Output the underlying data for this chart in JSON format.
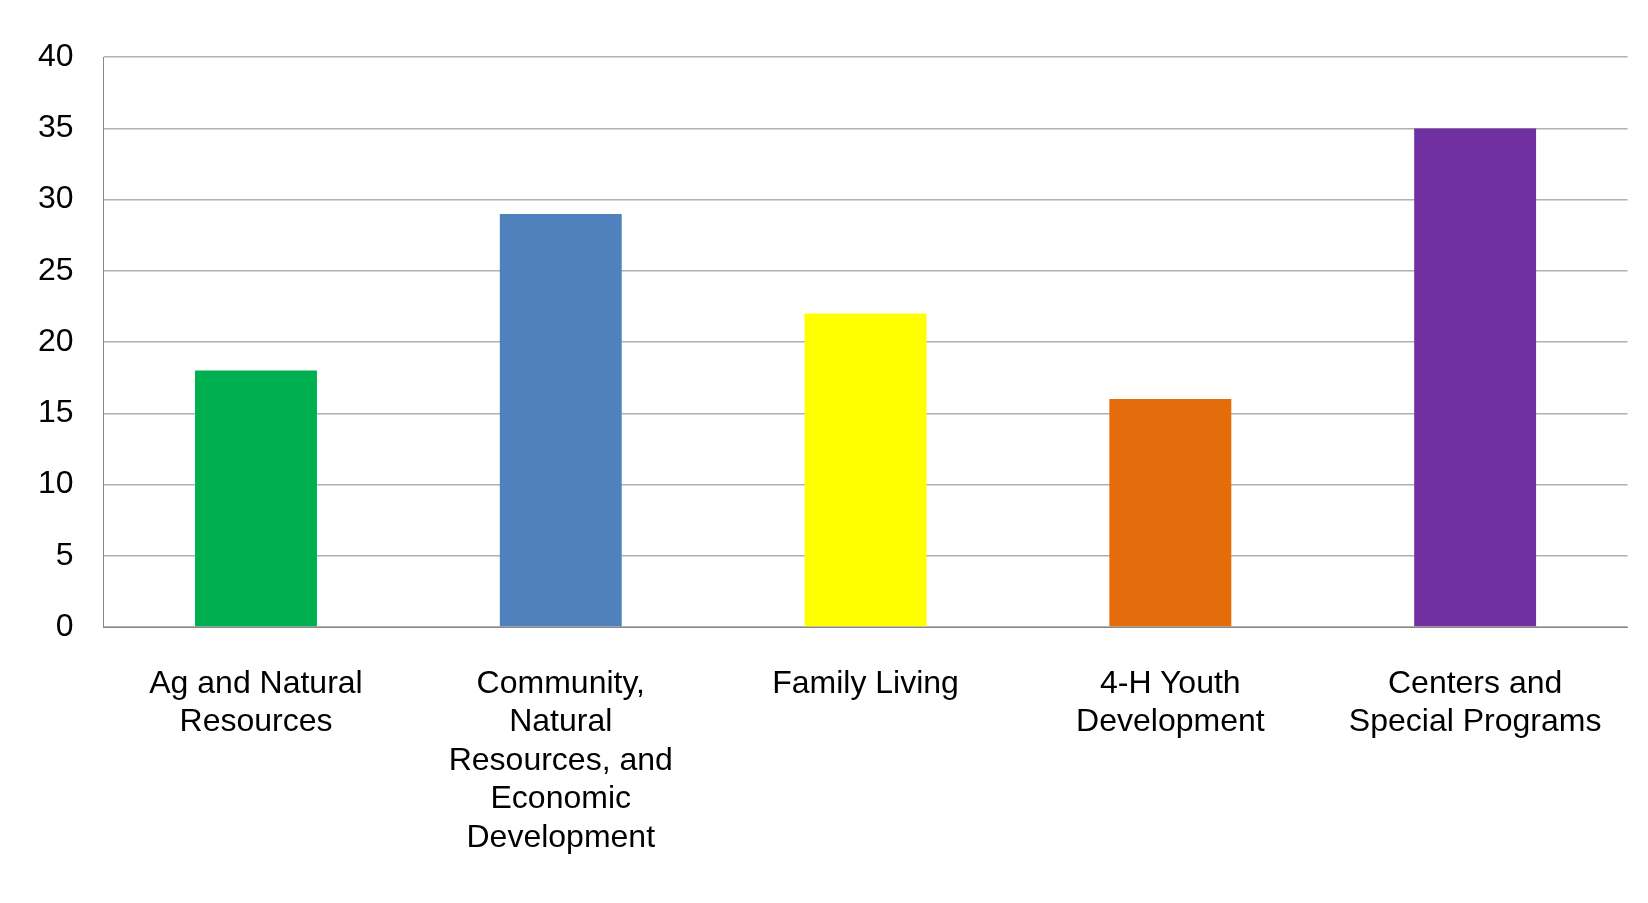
{
  "chart_data": {
    "type": "bar",
    "categories": [
      "Ag and Natural Resources",
      "Community, Natural Resources, and Economic Development",
      "Family Living",
      "4-H Youth Development",
      "Centers and Special Programs"
    ],
    "values": [
      18,
      29,
      22,
      16,
      35
    ],
    "colors": [
      "#00b050",
      "#4f81bd",
      "#ffff00",
      "#e46c0a",
      "#7030a0"
    ],
    "ylim": [
      0,
      40
    ],
    "yticks": [
      0,
      5,
      10,
      15,
      20,
      25,
      30,
      35,
      40
    ],
    "grid": "y"
  }
}
